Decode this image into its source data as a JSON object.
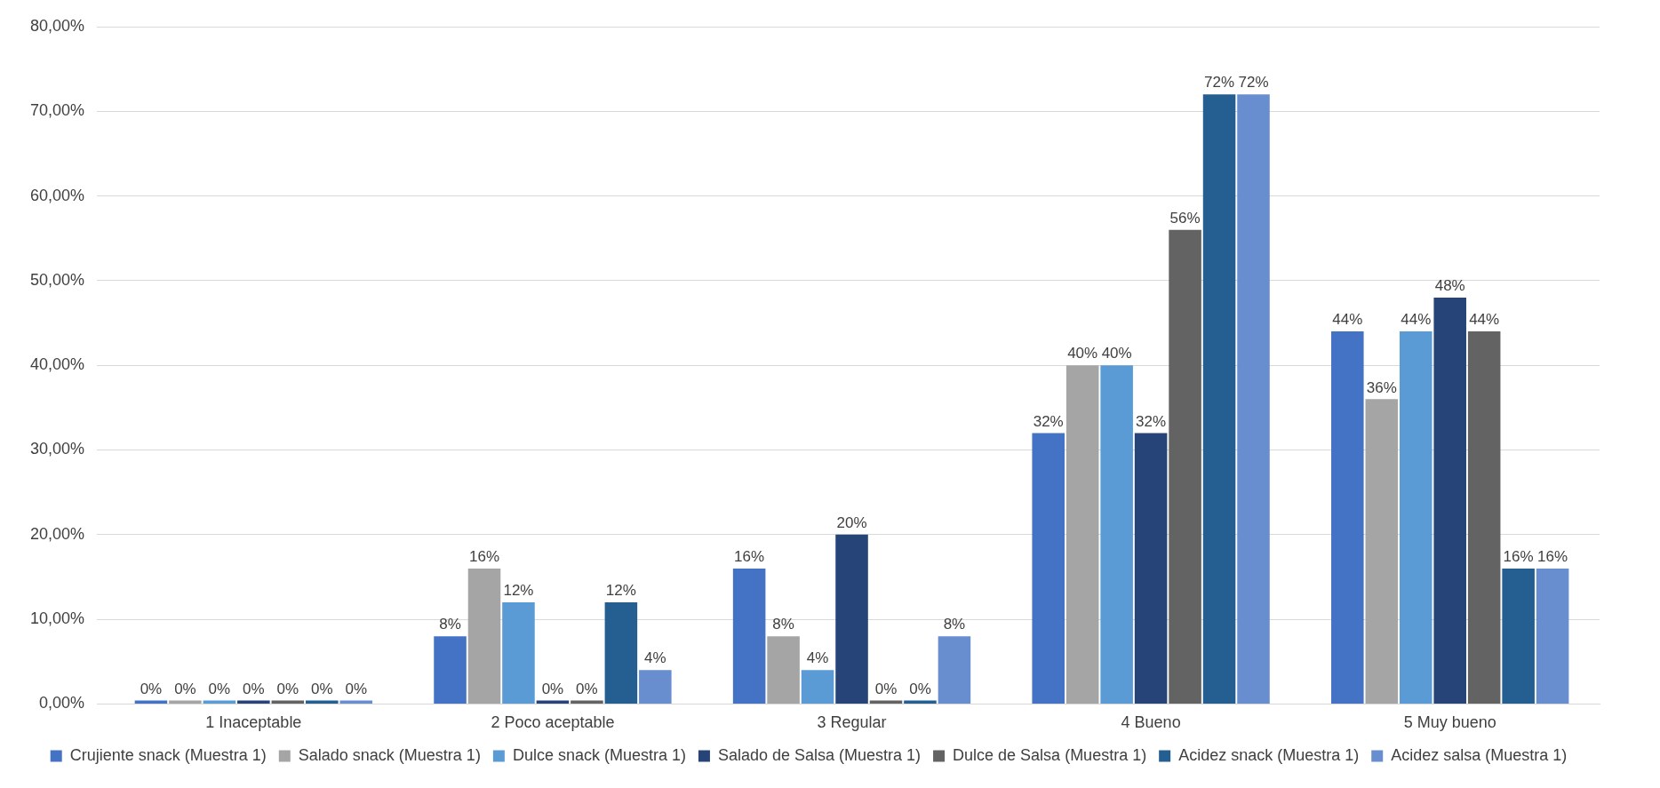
{
  "chart_data": {
    "type": "bar",
    "categories": [
      "1 Inaceptable",
      "2 Poco aceptable",
      "3 Regular",
      "4 Bueno",
      "5 Muy bueno"
    ],
    "series": [
      {
        "name": "Crujiente snack (Muestra 1)",
        "color": "#4472c4",
        "values": [
          0,
          8,
          16,
          32,
          44
        ],
        "value_labels": [
          "0%",
          "8%",
          "16%",
          "32%",
          "44%"
        ]
      },
      {
        "name": "Salado snack (Muestra 1)",
        "color": "#a5a5a5",
        "values": [
          0,
          16,
          8,
          40,
          36
        ],
        "value_labels": [
          "0%",
          "16%",
          "8%",
          "40%",
          "36%"
        ]
      },
      {
        "name": "Dulce snack (Muestra 1)",
        "color": "#5b9bd5",
        "values": [
          0,
          12,
          4,
          40,
          44
        ],
        "value_labels": [
          "0%",
          "12%",
          "4%",
          "40%",
          "44%"
        ]
      },
      {
        "name": "Salado de Salsa (Muestra 1)",
        "color": "#264478",
        "values": [
          0,
          0,
          20,
          32,
          48
        ],
        "value_labels": [
          "0%",
          "0%",
          "20%",
          "32%",
          "48%"
        ]
      },
      {
        "name": "Dulce de Salsa (Muestra 1)",
        "color": "#636363",
        "values": [
          0,
          0,
          0,
          56,
          44
        ],
        "value_labels": [
          "0%",
          "0%",
          "0%",
          "56%",
          "44%"
        ]
      },
      {
        "name": "Acidez snack (Muestra 1)",
        "color": "#255e91",
        "values": [
          0,
          12,
          0,
          72,
          16
        ],
        "value_labels": [
          "0%",
          "12%",
          "0%",
          "72%",
          "16%"
        ]
      },
      {
        "name": "Acidez salsa (Muestra 1)",
        "color": "#698ed0",
        "values": [
          0,
          4,
          8,
          72,
          16
        ],
        "value_labels": [
          "0%",
          "4%",
          "8%",
          "72%",
          "16%"
        ]
      }
    ],
    "ylim": [
      0,
      80
    ],
    "yticks": [
      {
        "value": 0,
        "label": "0,00%"
      },
      {
        "value": 10,
        "label": "10,00%"
      },
      {
        "value": 20,
        "label": "20,00%"
      },
      {
        "value": 30,
        "label": "30,00%"
      },
      {
        "value": 40,
        "label": "40,00%"
      },
      {
        "value": 50,
        "label": "50,00%"
      },
      {
        "value": 60,
        "label": "60,00%"
      },
      {
        "value": 70,
        "label": "70,00%"
      },
      {
        "value": 80,
        "label": "80,00%"
      }
    ],
    "grid": "y",
    "legend": "bottom"
  }
}
